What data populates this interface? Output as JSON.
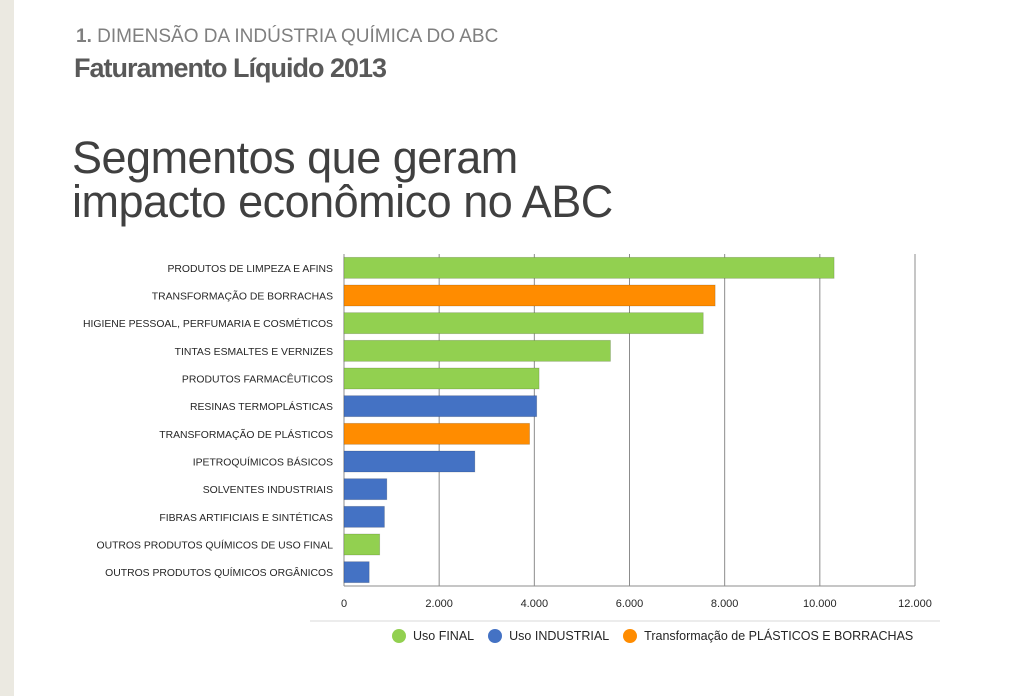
{
  "header": {
    "kicker_number": "1.",
    "kicker_text": "DIMENSÃO DA INDÚSTRIA QUÍMICA DO ABC",
    "subtitle": "Faturamento Líquido 2013",
    "title_line1": "Segmentos que geram",
    "title_line2": "impacto econômico no ABC"
  },
  "colors": {
    "uso_final": "#92d050",
    "uso_industrial": "#4472c4",
    "transformacao": "#ff8c00"
  },
  "chart_data": {
    "type": "bar",
    "orientation": "horizontal",
    "categories": [
      "PRODUTOS DE LIMPEZA E AFINS",
      "TRANSFORMAÇÃO DE BORRACHAS",
      "HIGIENE PESSOAL, PERFUMARIA E COSMÉTICOS",
      "TINTAS ESMALTES E VERNIZES",
      "PRODUTOS FARMACÊUTICOS",
      "RESINAS TERMOPLÁSTICAS",
      "TRANSFORMAÇÃO DE PLÁSTICOS",
      "IPETROQUÍMICOS BÁSICOS",
      "SOLVENTES INDUSTRIAIS",
      "FIBRAS ARTIFICIAIS E SINTÉTICAS",
      "OUTROS PRODUTOS QUÍMICOS DE USO FINAL",
      "OUTROS PRODUTOS QUÍMICOS ORGÂNICOS"
    ],
    "values": [
      10300,
      7800,
      7550,
      5600,
      4100,
      4050,
      3900,
      2750,
      900,
      850,
      750,
      530
    ],
    "groups": [
      "uso_final",
      "transformacao",
      "uso_final",
      "uso_final",
      "uso_final",
      "uso_industrial",
      "transformacao",
      "uso_industrial",
      "uso_industrial",
      "uso_industrial",
      "uso_final",
      "uso_industrial"
    ],
    "xlim": [
      0,
      12000
    ],
    "xticks": [
      0,
      2000,
      4000,
      6000,
      8000,
      10000,
      12000
    ],
    "xtick_labels": [
      "0",
      "2.000",
      "4.000",
      "6.000",
      "8.000",
      "10.000",
      "12.000"
    ],
    "grid": true,
    "legend_position": "bottom",
    "legend": [
      {
        "key": "uso_final",
        "label": "Uso FINAL"
      },
      {
        "key": "uso_industrial",
        "label": "Uso INDUSTRIAL"
      },
      {
        "key": "transformacao",
        "label": "Transformação de PLÁSTICOS E BORRACHAS"
      }
    ]
  }
}
